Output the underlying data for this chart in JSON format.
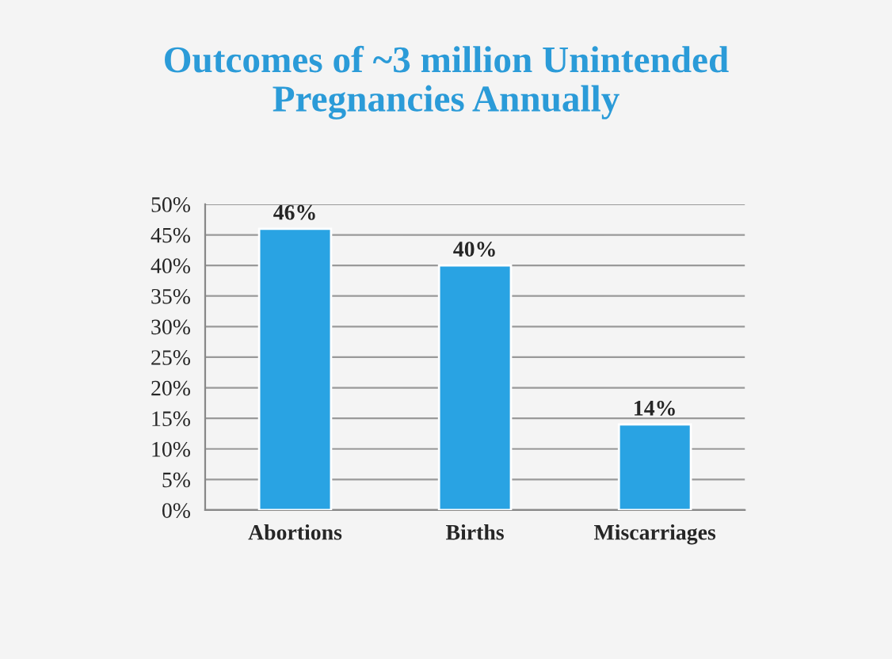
{
  "chart_data": {
    "type": "bar",
    "title": "Outcomes of ~3 million Unintended\nPregnancies Annually",
    "categories": [
      "Abortions",
      "Births",
      "Miscarriages"
    ],
    "values": [
      46,
      40,
      14
    ],
    "color": "#29a3e3",
    "value_labels": [
      "46%",
      "40%",
      "14%"
    ],
    "ylim": [
      0,
      50
    ],
    "yticks": [
      {
        "value": 0,
        "label": "0%"
      },
      {
        "value": 5,
        "label": "5%"
      },
      {
        "value": 10,
        "label": "10%"
      },
      {
        "value": 15,
        "label": "15%"
      },
      {
        "value": 20,
        "label": "20%"
      },
      {
        "value": 25,
        "label": "25%"
      },
      {
        "value": 30,
        "label": "30%"
      },
      {
        "value": 35,
        "label": "35%"
      },
      {
        "value": 40,
        "label": "40%"
      },
      {
        "value": 45,
        "label": "45%"
      },
      {
        "value": 50,
        "label": "50%"
      }
    ],
    "grid": "y",
    "legend": false
  }
}
